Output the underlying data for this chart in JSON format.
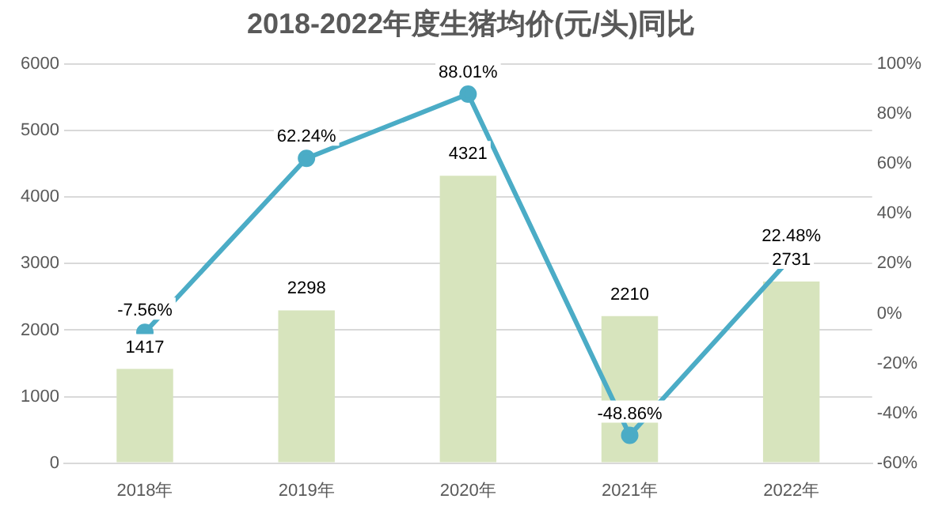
{
  "chart_data": {
    "type": "bar",
    "title": "2018-2022年度生猪均价(元/头)同比",
    "categories": [
      "2018年",
      "2019年",
      "2020年",
      "2021年",
      "2022年"
    ],
    "series": [
      {
        "color": "#d7e4bd",
        "values": [
          1417,
          2298,
          4321,
          2210,
          2731
        ],
        "value_labels": [
          "1417",
          "2298",
          "4321",
          "2210",
          "2731"
        ]
      },
      {
        "type": "line",
        "axis": "y2",
        "color": "#4bacc6",
        "marker": "circle",
        "line_style": "solid",
        "values": [
          -7.56,
          62.24,
          88.01,
          -48.86,
          22.48
        ],
        "value_labels": [
          "-7.56%",
          "62.24%",
          "88.01%",
          "-48.86%",
          "22.48%"
        ]
      }
    ],
    "ylim": [
      0,
      6000
    ],
    "yticks": [
      0,
      1000,
      2000,
      3000,
      4000,
      5000,
      6000
    ],
    "y2lim": [
      -60,
      100
    ],
    "y2ticks": [
      {
        "value": -60,
        "label": "-60%"
      },
      {
        "value": -40,
        "label": "-40%"
      },
      {
        "value": -20,
        "label": "-20%"
      },
      {
        "value": 0,
        "label": "0%"
      },
      {
        "value": 20,
        "label": "20%"
      },
      {
        "value": 40,
        "label": "40%"
      },
      {
        "value": 60,
        "label": "60%"
      },
      {
        "value": 80,
        "label": "80%"
      },
      {
        "value": 100,
        "label": "100%"
      }
    ],
    "grid": "y",
    "legend": false
  }
}
